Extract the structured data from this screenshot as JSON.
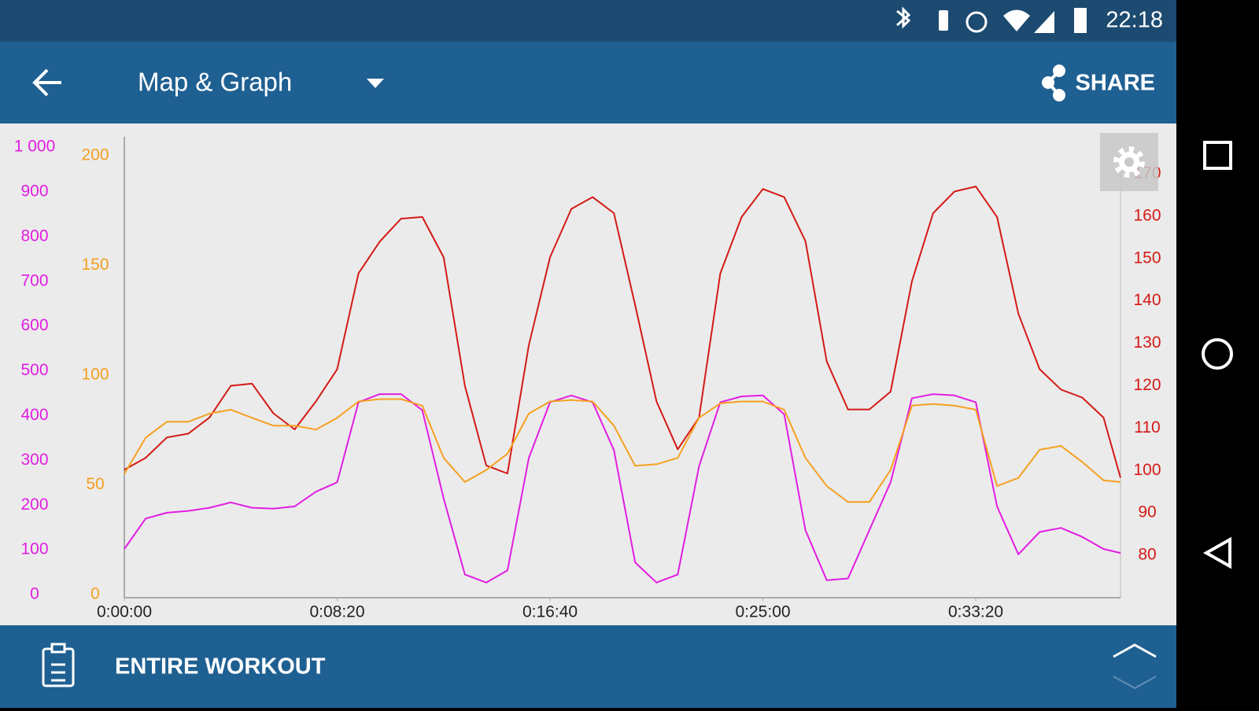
{
  "status_bar": {
    "time": "22:18"
  },
  "toolbar": {
    "title": "Map & Graph",
    "action": "SHARE"
  },
  "footer": {
    "label": "ENTIRE WORKOUT"
  },
  "chart_data": {
    "type": "line",
    "x": [
      0,
      50,
      100,
      150,
      200,
      250,
      300,
      350,
      400,
      450,
      500,
      550,
      600,
      650,
      700,
      750,
      800,
      850,
      900,
      950,
      1000,
      1050,
      1100,
      1150,
      1200,
      1250,
      1300,
      1350,
      1400,
      1450,
      1500,
      1550,
      1600,
      1650,
      1700,
      1750,
      1800,
      1850,
      1900,
      1950,
      2000,
      2050,
      2100,
      2150,
      2200,
      2250,
      2300,
      2340
    ],
    "xlim": [
      0,
      2340
    ],
    "xticks": [
      {
        "value": 0,
        "label": "0:00:00"
      },
      {
        "value": 500,
        "label": "0:08:20"
      },
      {
        "value": 1000,
        "label": "0:16:40"
      },
      {
        "value": 1500,
        "label": "0:25:00"
      },
      {
        "value": 2000,
        "label": "0:33:20"
      }
    ],
    "ylim": [
      0,
      1030
    ],
    "yticks": [
      0,
      100,
      200,
      300,
      400,
      500,
      600,
      700,
      800,
      900,
      {
        "value": 1000,
        "label": "1 000"
      }
    ],
    "y2lim": [
      70,
      178.7
    ],
    "y2ticks": [
      80,
      90,
      100,
      110,
      120,
      130,
      140,
      150,
      160,
      170
    ],
    "y3lim": [
      0,
      210
    ],
    "y3ticks": [
      0,
      50,
      100,
      150,
      200
    ],
    "series": [
      {
        "color": "#e21de2",
        "axis": "y",
        "values": [
          109,
          177,
          190,
          194,
          201,
          213,
          201,
          199,
          204,
          237,
          258,
          437,
          455,
          455,
          419,
          222,
          52,
          34,
          61,
          312,
          437,
          452,
          437,
          330,
          79,
          34,
          52,
          294,
          437,
          450,
          452,
          410,
          151,
          39,
          43,
          151,
          258,
          446,
          455,
          452,
          437,
          204,
          97,
          147,
          156,
          136,
          109,
          100
        ]
      },
      {
        "color": "#d41a16",
        "axis": "y2",
        "values": [
          100.2,
          103,
          107.8,
          108.7,
          112.5,
          120,
          120.5,
          113.5,
          109.7,
          116.3,
          123.9,
          146.5,
          154,
          159.4,
          159.8,
          150.3,
          120,
          101.2,
          99.3,
          129.5,
          150.3,
          161.7,
          164.5,
          160.7,
          139,
          116.3,
          105,
          112.5,
          146.5,
          159.8,
          166.4,
          164.5,
          154.1,
          125.7,
          114.4,
          114.4,
          118.6,
          144.6,
          160.7,
          165.8,
          167,
          159.8,
          137,
          123.9,
          119.1,
          117.2,
          112.5,
          98.3
        ]
      },
      {
        "color": "#f5a020",
        "axis": "y3",
        "values": [
          56.4,
          72.9,
          80.2,
          80.2,
          83.9,
          85.7,
          82,
          78.4,
          78.4,
          76.6,
          82,
          89.4,
          90.5,
          90.5,
          87.5,
          63.7,
          52.7,
          58.2,
          65.6,
          83.9,
          89.4,
          90.1,
          89.4,
          78.4,
          60.1,
          60.8,
          63.7,
          82,
          88.6,
          89.4,
          89.4,
          85.7,
          63.7,
          50.9,
          43.6,
          43.6,
          58.2,
          87.5,
          88.3,
          87.5,
          85.7,
          50.9,
          54.6,
          67.4,
          69.2,
          61.9,
          53.5,
          52.7
        ]
      }
    ]
  }
}
